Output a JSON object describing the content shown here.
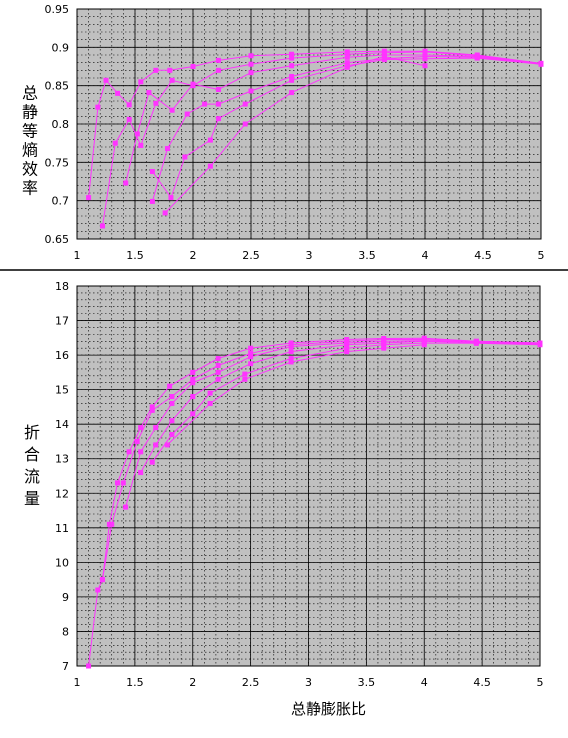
{
  "colors": {
    "plot_bg": "#c0c0c0",
    "major_grid": "#000000",
    "minor_grid": "#000000",
    "series": "#ff33ff",
    "separator": "#000000"
  },
  "chart_data": [
    {
      "type": "line",
      "ylabel": "总静等熵效率",
      "xlabel": "",
      "xlim": [
        1,
        5
      ],
      "ylim": [
        0.65,
        0.95
      ],
      "x_ticks": [
        1,
        1.5,
        2,
        2.5,
        3,
        3.5,
        4,
        4.5,
        5
      ],
      "x_tick_labels": [
        "1",
        "1.5",
        "2",
        "2.5",
        "3",
        "3.5",
        "4",
        "4.5",
        "5"
      ],
      "y_ticks": [
        0.65,
        0.7,
        0.75,
        0.8,
        0.85,
        0.9,
        0.95
      ],
      "y_tick_labels": [
        "0.65",
        "0.7",
        "0.75",
        "0.8",
        "0.85",
        "0.9",
        "0.95"
      ],
      "grid": true,
      "series": [
        {
          "x": [
            1.1,
            1.18,
            1.25,
            1.35,
            1.45,
            1.55,
            1.68,
            1.8,
            2.0,
            2.22,
            2.5,
            2.85,
            3.33,
            3.65,
            4.0,
            4.45,
            5.0
          ],
          "y": [
            0.704,
            0.822,
            0.857,
            0.84,
            0.825,
            0.855,
            0.87,
            0.87,
            0.875,
            0.883,
            0.889,
            0.891,
            0.894,
            0.895,
            0.895,
            0.89,
            0.879
          ]
        },
        {
          "x": [
            1.22,
            1.33,
            1.45,
            1.55,
            1.68,
            1.82,
            2.0,
            2.22,
            2.5,
            2.85,
            3.33,
            3.65,
            4.0,
            4.45,
            5.0
          ],
          "y": [
            0.667,
            0.775,
            0.806,
            0.772,
            0.827,
            0.857,
            0.85,
            0.87,
            0.878,
            0.886,
            0.891,
            0.893,
            0.894,
            0.889,
            0.878
          ]
        },
        {
          "x": [
            1.42,
            1.52,
            1.62,
            1.82,
            2.0,
            2.22,
            2.5,
            2.85,
            3.33,
            3.65,
            4.0,
            4.45,
            5.0
          ],
          "y": [
            0.723,
            0.787,
            0.841,
            0.818,
            0.852,
            0.845,
            0.867,
            0.876,
            0.887,
            0.89,
            0.89,
            0.888,
            0.879
          ]
        },
        {
          "x": [
            1.65,
            1.78,
            1.95,
            2.1,
            2.22,
            2.5,
            2.85,
            3.33,
            3.65,
            4.0,
            4.45,
            5.0
          ],
          "y": [
            0.699,
            0.768,
            0.813,
            0.826,
            0.826,
            0.843,
            0.862,
            0.88,
            0.885,
            0.888,
            0.887,
            0.879
          ]
        },
        {
          "x": [
            1.65,
            1.81,
            1.93,
            2.15,
            2.22,
            2.45,
            2.85,
            3.33,
            3.65,
            4.0,
            4.45,
            5.0
          ],
          "y": [
            0.738,
            0.704,
            0.757,
            0.779,
            0.807,
            0.826,
            0.857,
            0.876,
            0.884,
            0.885,
            0.886,
            0.878
          ]
        },
        {
          "x": [
            1.76,
            2.15,
            2.45,
            2.85,
            3.33,
            3.65,
            4.0
          ],
          "y": [
            0.684,
            0.745,
            0.8,
            0.841,
            0.874,
            0.888,
            0.876
          ]
        }
      ]
    },
    {
      "type": "line",
      "ylabel": "折合流量",
      "xlabel": "总静膨胀比",
      "xlim": [
        1,
        5
      ],
      "ylim": [
        7,
        18
      ],
      "x_ticks": [
        1,
        1.5,
        2,
        2.5,
        3,
        3.5,
        4,
        4.5,
        5
      ],
      "x_tick_labels": [
        "1",
        "1.5",
        "2",
        "2.5",
        "3",
        "3.5",
        "4",
        "4.5",
        "5"
      ],
      "y_ticks": [
        7,
        8,
        9,
        10,
        11,
        12,
        13,
        14,
        15,
        16,
        17,
        18
      ],
      "y_tick_labels": [
        "7",
        "8",
        "9",
        "10",
        "11",
        "12",
        "13",
        "14",
        "15",
        "16",
        "17",
        "18"
      ],
      "grid": true,
      "series": [
        {
          "x": [
            1.1,
            1.18,
            1.22,
            1.28,
            1.35,
            1.45,
            1.55,
            1.65,
            1.8,
            2.0,
            2.22,
            2.5,
            2.85,
            3.33,
            3.65,
            4.0,
            4.45,
            5.0
          ],
          "y": [
            7.0,
            9.2,
            9.5,
            11.1,
            12.3,
            13.2,
            13.9,
            14.5,
            15.1,
            15.5,
            15.9,
            16.2,
            16.35,
            16.45,
            16.48,
            16.49,
            16.4,
            16.35
          ]
        },
        {
          "x": [
            1.22,
            1.3,
            1.4,
            1.52,
            1.65,
            1.82,
            2.0,
            2.22,
            2.5,
            2.85,
            3.33,
            3.65,
            4.0,
            4.45,
            5.0
          ],
          "y": [
            9.5,
            11.1,
            12.3,
            13.5,
            14.4,
            14.8,
            15.3,
            15.7,
            16.05,
            16.3,
            16.4,
            16.45,
            16.45,
            16.4,
            16.35
          ]
        },
        {
          "x": [
            1.42,
            1.55,
            1.68,
            1.82,
            2.0,
            2.22,
            2.5,
            2.85,
            3.33,
            3.65,
            4.0,
            4.45,
            5.0
          ],
          "y": [
            11.6,
            13.2,
            13.9,
            14.6,
            15.2,
            15.5,
            15.95,
            16.25,
            16.35,
            16.4,
            16.42,
            16.38,
            16.33
          ]
        },
        {
          "x": [
            1.55,
            1.68,
            1.82,
            2.0,
            2.22,
            2.5,
            2.85,
            3.33,
            3.65,
            4.0,
            4.45,
            5.0
          ],
          "y": [
            12.6,
            13.4,
            14.1,
            14.8,
            15.3,
            15.75,
            16.1,
            16.3,
            16.35,
            16.4,
            16.36,
            16.32
          ]
        },
        {
          "x": [
            1.65,
            1.82,
            2.0,
            2.15,
            2.45,
            2.85,
            3.33,
            3.65,
            4.0,
            4.45,
            5.0
          ],
          "y": [
            12.9,
            13.7,
            14.3,
            14.9,
            15.45,
            15.9,
            16.2,
            16.3,
            16.35,
            16.34,
            16.3
          ]
        },
        {
          "x": [
            1.78,
            2.15,
            2.45,
            2.85,
            3.33,
            3.65,
            4.0
          ],
          "y": [
            13.4,
            14.6,
            15.3,
            15.8,
            16.1,
            16.2,
            16.3
          ]
        }
      ]
    }
  ]
}
